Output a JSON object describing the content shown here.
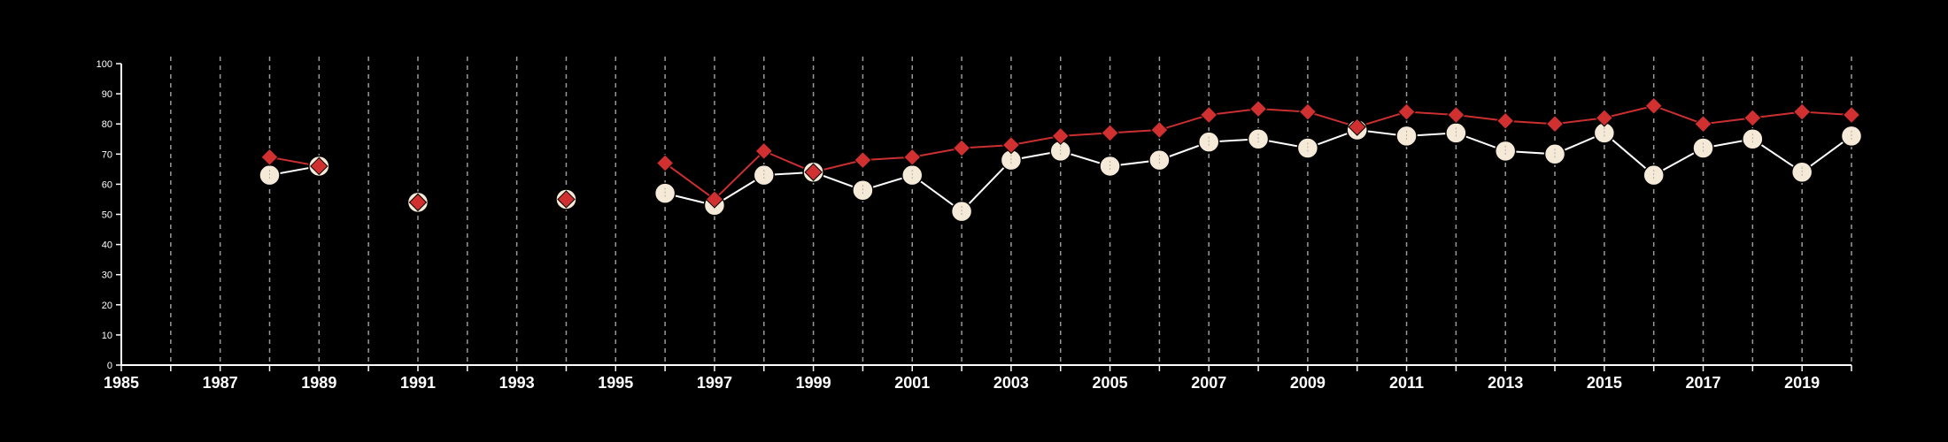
{
  "chart_data": {
    "type": "line",
    "title": "",
    "xlabel": "",
    "ylabel": "",
    "xlim": [
      1985,
      2020
    ],
    "ylim": [
      0,
      100
    ],
    "grid": "vertical dashed lines at each year",
    "legend": "none",
    "x_ticks": [
      1985,
      1987,
      1989,
      1991,
      1993,
      1995,
      1997,
      1999,
      2001,
      2003,
      2005,
      2007,
      2009,
      2011,
      2013,
      2015,
      2017,
      2019
    ],
    "y_ticks": [
      0,
      10,
      20,
      30,
      40,
      50,
      60,
      70,
      80,
      90,
      100
    ],
    "x": [
      1985,
      1986,
      1987,
      1988,
      1989,
      1990,
      1991,
      1992,
      1993,
      1994,
      1995,
      1996,
      1997,
      1998,
      1999,
      2000,
      2001,
      2002,
      2003,
      2004,
      2005,
      2006,
      2007,
      2008,
      2009,
      2010,
      2011,
      2012,
      2013,
      2014,
      2015,
      2016,
      2017,
      2018,
      2019,
      2020
    ],
    "series": [
      {
        "marker": "circle",
        "color": "#f5ead8",
        "line_color": "#ffffff",
        "values": [
          null,
          null,
          null,
          63,
          66,
          null,
          54,
          null,
          null,
          55,
          null,
          57,
          53,
          63,
          64,
          58,
          63,
          51,
          68,
          71,
          66,
          68,
          74,
          75,
          72,
          78,
          76,
          77,
          71,
          70,
          77,
          63,
          72,
          75,
          64,
          76
        ]
      },
      {
        "marker": "diamond",
        "color": "#d03030",
        "line_color": "#cc2f2f",
        "values": [
          null,
          null,
          null,
          69,
          66,
          null,
          54,
          null,
          null,
          55,
          null,
          67,
          55,
          71,
          64,
          68,
          69,
          72,
          73,
          76,
          77,
          78,
          83,
          85,
          84,
          79,
          84,
          83,
          81,
          80,
          82,
          86,
          80,
          82,
          84,
          83
        ]
      }
    ]
  },
  "colors": {
    "background": "#000000",
    "axis": "#ffffff",
    "grid": "#9a9a9a"
  }
}
